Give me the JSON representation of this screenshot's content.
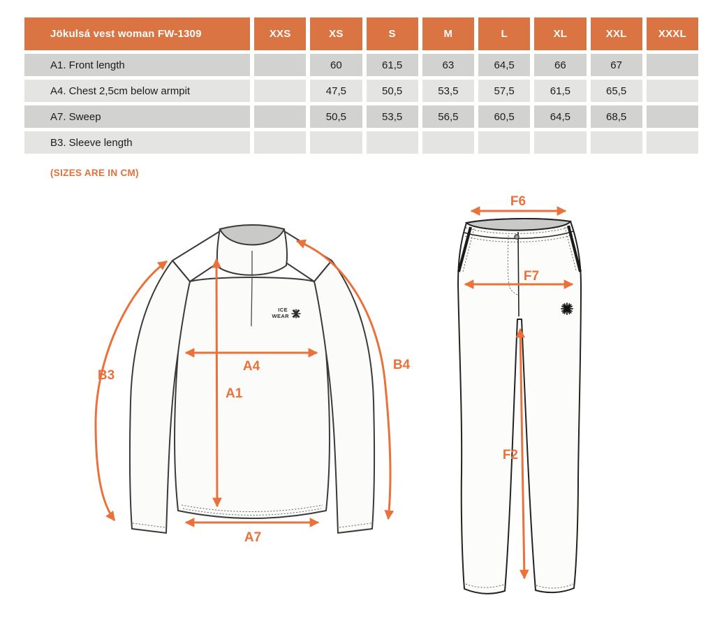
{
  "colors": {
    "header_orange": "#DB7443",
    "arrow_orange": "#EB713A",
    "note_orange": "#E2703C",
    "row_dark": "#D2D2D0",
    "row_light": "#E4E4E2",
    "collar_grey": "#C9C9C7"
  },
  "size_table": {
    "title": "Jökulsá vest woman FW-1309",
    "columns": [
      "XXS",
      "XS",
      "S",
      "M",
      "L",
      "XL",
      "XXL",
      "XXXL"
    ],
    "rows": [
      {
        "label": "A1. Front length",
        "values": [
          "",
          "60",
          "61,5",
          "63",
          "64,5",
          "66",
          "67",
          ""
        ]
      },
      {
        "label": "A4. Chest 2,5cm below armpit",
        "values": [
          "",
          "47,5",
          "50,5",
          "53,5",
          "57,5",
          "61,5",
          "65,5",
          ""
        ]
      },
      {
        "label": "A7. Sweep",
        "values": [
          "",
          "50,5",
          "53,5",
          "56,5",
          "60,5",
          "64,5",
          "68,5",
          ""
        ]
      },
      {
        "label": "B3. Sleeve length",
        "values": [
          "",
          "",
          "",
          "",
          "",
          "",
          "",
          ""
        ]
      }
    ]
  },
  "note": "(SIZES ARE IN CM)",
  "top_diagram": {
    "labels": {
      "b3": "B3",
      "a4": "A4",
      "a1": "A1",
      "b4": "B4",
      "a7": "A7"
    },
    "logo": {
      "line1": "ICE",
      "line2": "WEAR"
    }
  },
  "pants_diagram": {
    "labels": {
      "f6": "F6",
      "f7": "F7",
      "f2": "F2"
    }
  }
}
